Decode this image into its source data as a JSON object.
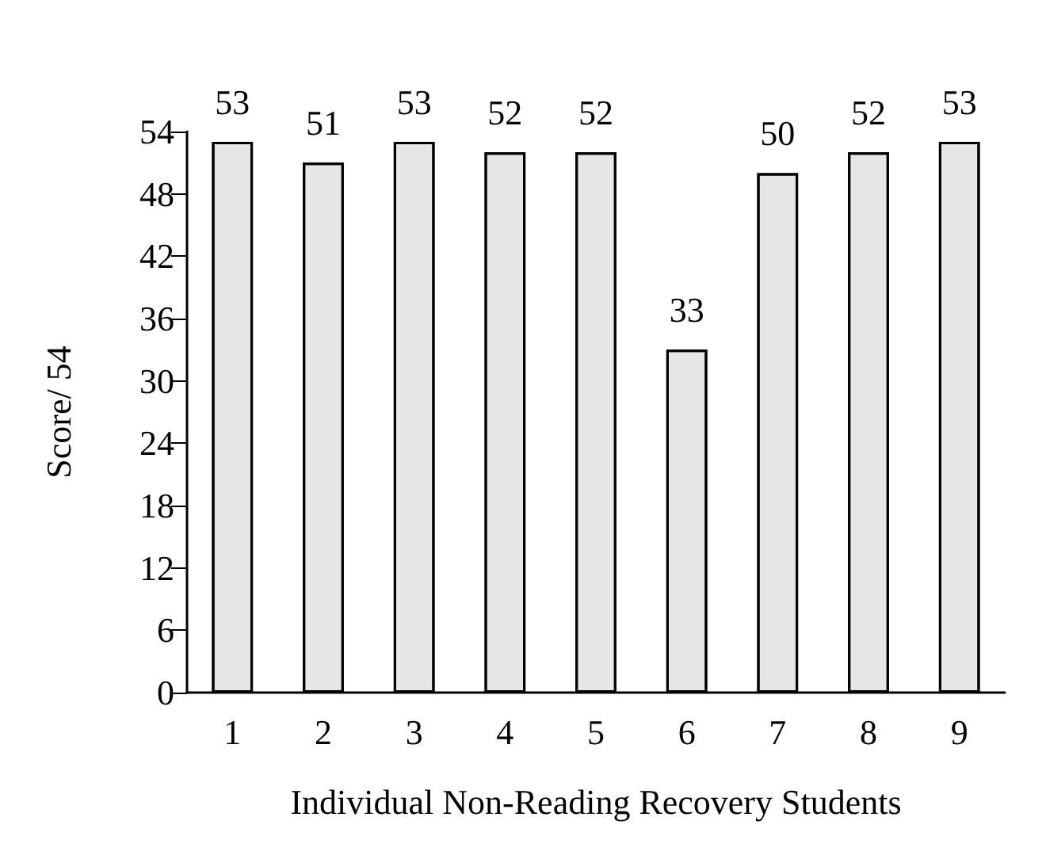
{
  "chart_data": {
    "type": "bar",
    "xlabel": "Individual Non-Reading Recovery Students",
    "ylabel": "Score/ 54",
    "categories": [
      "1",
      "2",
      "3",
      "4",
      "5",
      "6",
      "7",
      "8",
      "9"
    ],
    "values": [
      53,
      51,
      53,
      52,
      52,
      33,
      50,
      52,
      53
    ],
    "color": "#e6e6e6",
    "ylim": [
      0,
      54
    ],
    "yticks": [
      0,
      6,
      12,
      18,
      24,
      30,
      36,
      42,
      48,
      54
    ],
    "data_labels": true,
    "grid": false
  }
}
